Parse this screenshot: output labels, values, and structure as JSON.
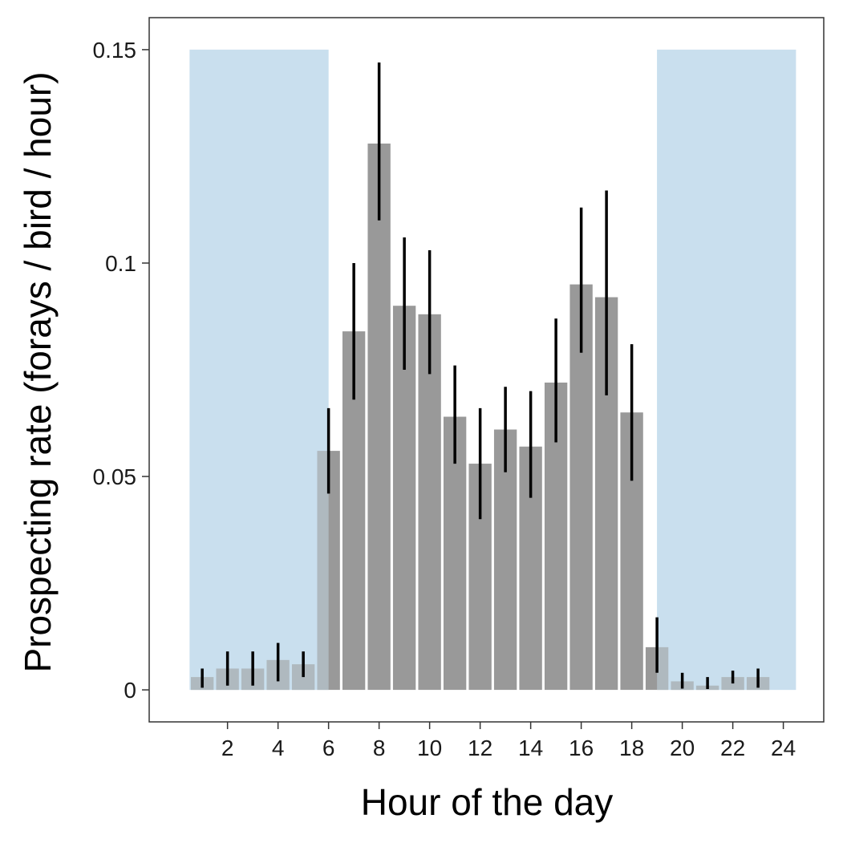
{
  "chart_data": {
    "type": "bar",
    "xlabel": "Hour of the day",
    "ylabel": "Prospecting rate (forays / bird / hour)",
    "x": [
      1,
      2,
      3,
      4,
      5,
      6,
      7,
      8,
      9,
      10,
      11,
      12,
      13,
      14,
      15,
      16,
      17,
      18,
      19,
      20,
      21,
      22,
      23
    ],
    "values": [
      0.003,
      0.005,
      0.005,
      0.007,
      0.006,
      0.056,
      0.084,
      0.128,
      0.09,
      0.088,
      0.064,
      0.053,
      0.061,
      0.057,
      0.072,
      0.095,
      0.092,
      0.065,
      0.01,
      0.002,
      0.001,
      0.003,
      0.003
    ],
    "error_low": [
      0.0005,
      0.001,
      0.001,
      0.002,
      0.003,
      0.046,
      0.068,
      0.11,
      0.075,
      0.074,
      0.053,
      0.04,
      0.051,
      0.045,
      0.058,
      0.079,
      0.069,
      0.049,
      0.004,
      0.0003,
      0.0002,
      0.0015,
      0.0005
    ],
    "error_high": [
      0.005,
      0.009,
      0.009,
      0.011,
      0.009,
      0.066,
      0.1,
      0.147,
      0.106,
      0.103,
      0.076,
      0.066,
      0.071,
      0.07,
      0.087,
      0.113,
      0.117,
      0.081,
      0.017,
      0.004,
      0.003,
      0.0045,
      0.005
    ],
    "night_periods": [
      [
        0.5,
        6.0
      ],
      [
        19.0,
        24.5
      ]
    ],
    "night_top": 0.15,
    "xlim": [
      -1.1,
      25.6
    ],
    "ylim": [
      -0.0075,
      0.1575
    ],
    "x_ticks": [
      2,
      4,
      6,
      8,
      10,
      12,
      14,
      16,
      18,
      20,
      22,
      24
    ],
    "y_ticks": [
      {
        "value": 0,
        "label": "0"
      },
      {
        "value": 0.05,
        "label": "0.05"
      },
      {
        "value": 0.1,
        "label": "0.1"
      },
      {
        "value": 0.15,
        "label": "0.15"
      }
    ],
    "grid": false,
    "colors": {
      "bar": "#999999",
      "night_band": "#c9dfee",
      "error_bar": "#000000",
      "panel_border": "#333333"
    }
  }
}
